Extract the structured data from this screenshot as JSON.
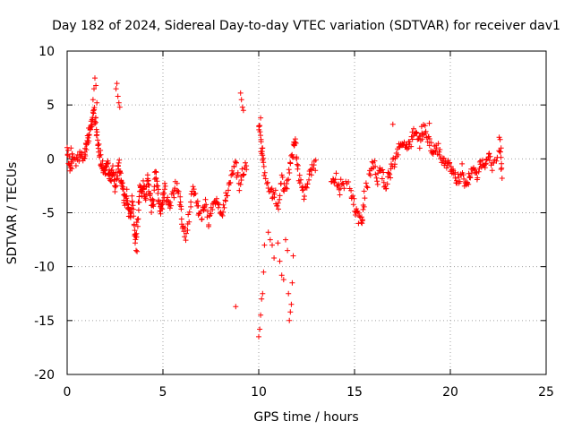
{
  "chart_data": {
    "type": "scatter",
    "title": "Day 182 of 2024, Sidereal Day-to-day VTEC variation (SDTVAR) for receiver dav1",
    "xlabel": "GPS time / hours",
    "ylabel": "SDTVAR / TECUs",
    "xlim": [
      0,
      25
    ],
    "ylim": [
      -20,
      10
    ],
    "xticks": [
      0,
      5,
      10,
      15,
      20,
      25
    ],
    "yticks": [
      -20,
      -15,
      -10,
      -5,
      0,
      5,
      10
    ],
    "grid": true,
    "marker": "+",
    "color": "#ff0000",
    "series": [
      {
        "name": "SDTVAR",
        "trace": [
          [
            0.0,
            0.5
          ],
          [
            0.15,
            -0.8
          ],
          [
            0.3,
            0.3
          ],
          [
            0.5,
            -0.3
          ],
          [
            0.7,
            0.6
          ],
          [
            0.9,
            0.0
          ],
          [
            1.0,
            1.2
          ],
          [
            1.1,
            2.0
          ],
          [
            1.2,
            2.8
          ],
          [
            1.3,
            3.5
          ],
          [
            1.4,
            4.5
          ],
          [
            1.5,
            3.0
          ],
          [
            1.6,
            1.5
          ],
          [
            1.7,
            0.5
          ],
          [
            1.8,
            -0.5
          ],
          [
            1.9,
            -0.8
          ],
          [
            2.0,
            -1.2
          ],
          [
            2.1,
            -0.5
          ],
          [
            2.2,
            -1.5
          ],
          [
            2.3,
            -1.8
          ],
          [
            2.4,
            -1.0
          ],
          [
            2.5,
            -2.5
          ],
          [
            2.6,
            -1.5
          ],
          [
            2.7,
            -0.5
          ],
          [
            2.8,
            -2.2
          ],
          [
            2.9,
            -2.8
          ],
          [
            3.0,
            -4.0
          ],
          [
            3.1,
            -3.0
          ],
          [
            3.2,
            -4.5
          ],
          [
            3.3,
            -5.5
          ],
          [
            3.4,
            -4.0
          ],
          [
            3.5,
            -6.5
          ],
          [
            3.6,
            -7.5
          ],
          [
            3.7,
            -5.0
          ],
          [
            3.8,
            -2.5
          ],
          [
            3.9,
            -3.5
          ],
          [
            4.0,
            -2.0
          ],
          [
            4.1,
            -4.0
          ],
          [
            4.2,
            -1.5
          ],
          [
            4.3,
            -3.0
          ],
          [
            4.4,
            -4.5
          ],
          [
            4.5,
            -3.8
          ],
          [
            4.6,
            -1.2
          ],
          [
            4.7,
            -2.5
          ],
          [
            4.8,
            -4.2
          ],
          [
            4.9,
            -5.0
          ],
          [
            5.0,
            -3.5
          ],
          [
            5.1,
            -2.8
          ],
          [
            5.3,
            -4.5
          ],
          [
            5.5,
            -3.5
          ],
          [
            5.7,
            -2.5
          ],
          [
            5.9,
            -4.0
          ],
          [
            6.0,
            -6.5
          ],
          [
            6.2,
            -7.0
          ],
          [
            6.4,
            -5.0
          ],
          [
            6.6,
            -2.5
          ],
          [
            6.8,
            -4.5
          ],
          [
            7.0,
            -5.5
          ],
          [
            7.2,
            -4.0
          ],
          [
            7.4,
            -6.0
          ],
          [
            7.6,
            -4.5
          ],
          [
            7.8,
            -3.5
          ],
          [
            8.0,
            -5.5
          ],
          [
            8.2,
            -4.0
          ],
          [
            8.4,
            -3.0
          ],
          [
            8.6,
            -1.5
          ],
          [
            8.8,
            -0.5
          ],
          [
            9.0,
            -2.5
          ],
          [
            9.2,
            -1.0
          ],
          [
            9.4,
            -0.5
          ],
          [
            10.0,
            3.5
          ],
          [
            10.1,
            1.5
          ],
          [
            10.2,
            0.0
          ],
          [
            10.3,
            -1.5
          ],
          [
            10.6,
            -3.5
          ],
          [
            10.8,
            -2.8
          ],
          [
            11.0,
            -4.5
          ],
          [
            11.2,
            -2.0
          ],
          [
            11.4,
            -3.0
          ],
          [
            11.6,
            -1.0
          ],
          [
            11.8,
            0.5
          ],
          [
            11.9,
            2.0
          ],
          [
            12.0,
            -0.5
          ],
          [
            12.2,
            -2.5
          ],
          [
            12.4,
            -3.5
          ],
          [
            12.6,
            -2.0
          ],
          [
            12.8,
            -1.0
          ],
          [
            13.0,
            -0.5
          ],
          [
            13.8,
            -2.5
          ],
          [
            14.0,
            -1.5
          ],
          [
            14.2,
            -3.0
          ],
          [
            14.4,
            -2.0
          ],
          [
            14.8,
            -3.0
          ],
          [
            15.0,
            -4.5
          ],
          [
            15.2,
            -5.5
          ],
          [
            15.4,
            -6.0
          ],
          [
            15.5,
            -3.5
          ],
          [
            15.8,
            -1.5
          ],
          [
            16.0,
            -0.5
          ],
          [
            16.2,
            -2.0
          ],
          [
            16.4,
            -1.0
          ],
          [
            16.6,
            -2.5
          ],
          [
            16.8,
            -1.5
          ],
          [
            17.0,
            -0.5
          ],
          [
            17.2,
            0.5
          ],
          [
            17.4,
            1.2
          ],
          [
            17.6,
            1.8
          ],
          [
            17.8,
            1.0
          ],
          [
            18.0,
            2.0
          ],
          [
            18.2,
            2.5
          ],
          [
            18.4,
            1.5
          ],
          [
            18.6,
            2.8
          ],
          [
            18.8,
            2.0
          ],
          [
            19.0,
            1.0
          ],
          [
            19.2,
            0.5
          ],
          [
            19.4,
            1.0
          ],
          [
            19.6,
            0.0
          ],
          [
            19.8,
            -0.5
          ],
          [
            20.0,
            -1.0
          ],
          [
            20.2,
            -1.5
          ],
          [
            20.4,
            -2.0
          ],
          [
            20.6,
            -1.0
          ],
          [
            20.8,
            -2.5
          ],
          [
            21.0,
            -1.5
          ],
          [
            21.2,
            -0.5
          ],
          [
            21.4,
            -1.5
          ],
          [
            21.6,
            -0.5
          ],
          [
            21.8,
            -1.0
          ],
          [
            22.0,
            0.5
          ],
          [
            22.2,
            -0.5
          ],
          [
            22.6,
            0.8
          ],
          [
            22.7,
            -1.0
          ]
        ],
        "points": [
          [
            0.05,
            0.8
          ],
          [
            0.1,
            -0.5
          ],
          [
            0.2,
            1.0
          ],
          [
            0.25,
            -0.9
          ],
          [
            1.25,
            3.5
          ],
          [
            1.35,
            5.5
          ],
          [
            1.4,
            6.5
          ],
          [
            1.45,
            7.5
          ],
          [
            1.5,
            6.8
          ],
          [
            1.55,
            5.2
          ],
          [
            2.55,
            6.5
          ],
          [
            2.6,
            7.0
          ],
          [
            2.65,
            5.8
          ],
          [
            2.7,
            5.2
          ],
          [
            2.75,
            4.8
          ],
          [
            3.6,
            -8.5
          ],
          [
            3.65,
            -8.6
          ],
          [
            3.55,
            -7.8
          ],
          [
            9.05,
            6.1
          ],
          [
            9.1,
            5.5
          ],
          [
            9.15,
            4.8
          ],
          [
            9.2,
            4.5
          ],
          [
            8.8,
            -13.7
          ],
          [
            10.0,
            -16.5
          ],
          [
            10.05,
            -15.8
          ],
          [
            10.1,
            -14.5
          ],
          [
            10.15,
            -13.0
          ],
          [
            10.2,
            -12.5
          ],
          [
            10.25,
            -10.5
          ],
          [
            10.3,
            -8.0
          ],
          [
            10.1,
            3.8
          ],
          [
            10.2,
            1.0
          ],
          [
            10.5,
            -6.8
          ],
          [
            10.6,
            -7.5
          ],
          [
            10.7,
            -8.0
          ],
          [
            10.8,
            -9.2
          ],
          [
            11.0,
            -7.8
          ],
          [
            11.1,
            -9.5
          ],
          [
            11.2,
            -10.8
          ],
          [
            11.3,
            -11.2
          ],
          [
            11.4,
            -7.5
          ],
          [
            11.5,
            -8.5
          ],
          [
            11.55,
            -12.5
          ],
          [
            11.6,
            -15.0
          ],
          [
            11.65,
            -14.2
          ],
          [
            11.7,
            -13.5
          ],
          [
            11.75,
            -11.5
          ],
          [
            11.8,
            -9.0
          ],
          [
            17.0,
            3.2
          ],
          [
            18.5,
            3.0
          ],
          [
            18.9,
            3.3
          ],
          [
            22.55,
            2.0
          ],
          [
            22.6,
            1.8
          ],
          [
            22.65,
            1.0
          ],
          [
            22.7,
            -1.8
          ]
        ]
      }
    ]
  }
}
